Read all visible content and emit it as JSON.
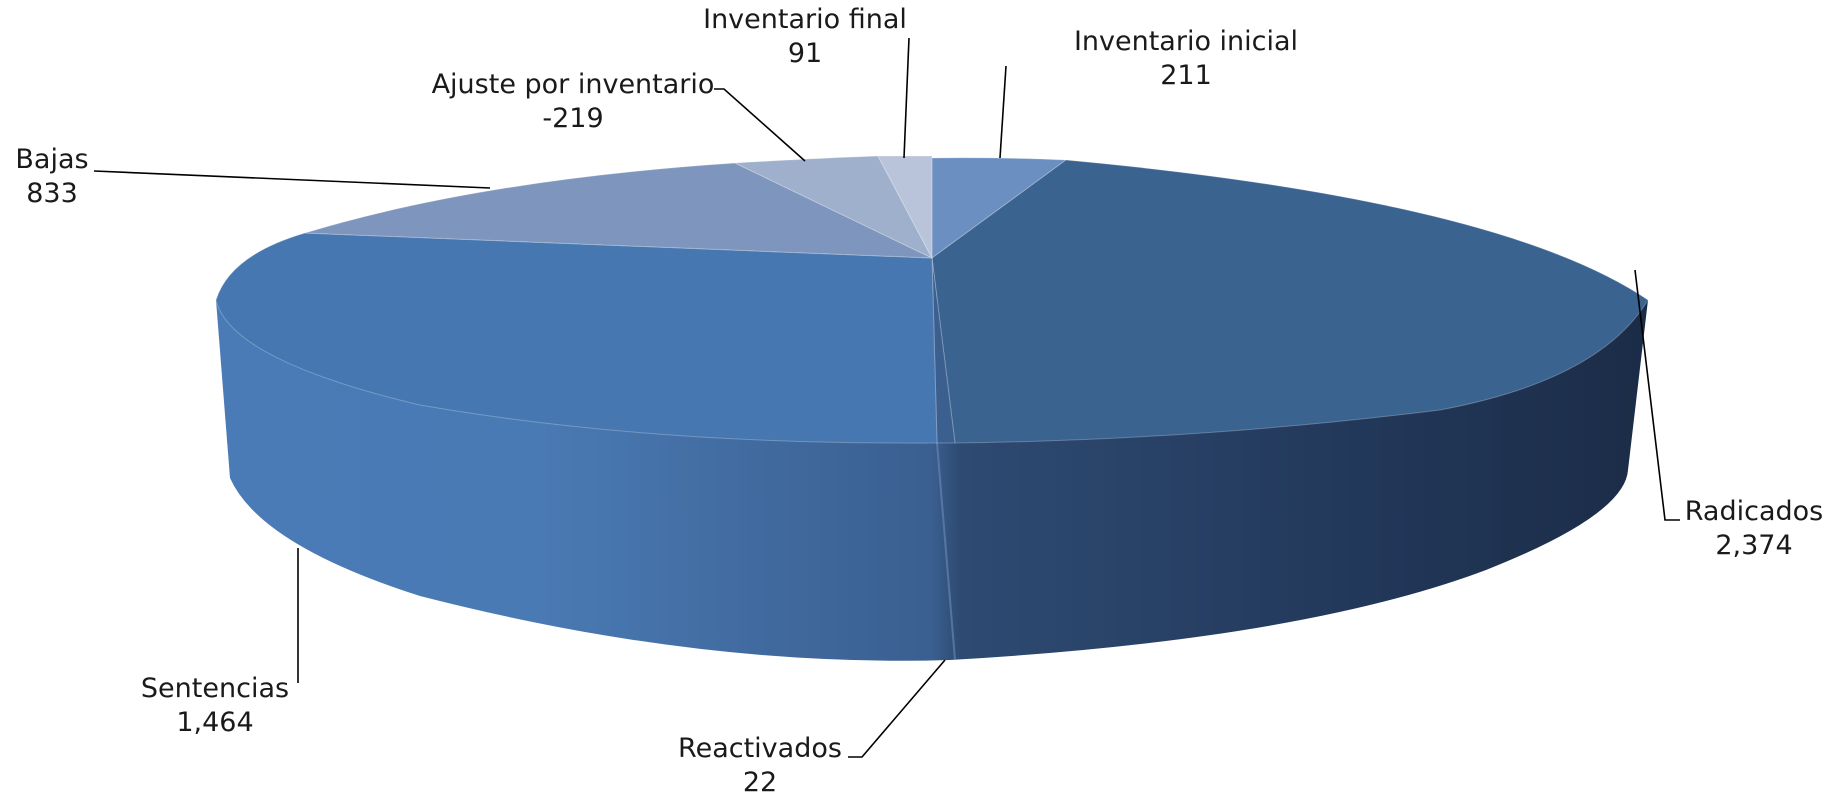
{
  "chart_data": {
    "type": "pie",
    "title": "",
    "style": "3d-exploded-oval",
    "slices": [
      {
        "label": "Inventario inicial",
        "value_label": "211",
        "value": 211,
        "color": "#6b8fc0"
      },
      {
        "label": "Radicados",
        "value_label": "2,374",
        "value": 2374,
        "color": "#3a6390"
      },
      {
        "label": "Reactivados",
        "value_label": "22",
        "value": 22,
        "color": "#3b5f8f"
      },
      {
        "label": "Sentencias",
        "value_label": "1,464",
        "value": 1464,
        "color": "#4777b0"
      },
      {
        "label": "Bajas",
        "value_label": "833",
        "value": 833,
        "color": "#7e95bd"
      },
      {
        "label": "Ajuste por inventario",
        "value_label": "-219",
        "value": -219,
        "color": "#9fb0cd"
      },
      {
        "label": "Inventario final",
        "value_label": "91",
        "value": 91,
        "color": "#b9c4da"
      }
    ]
  }
}
